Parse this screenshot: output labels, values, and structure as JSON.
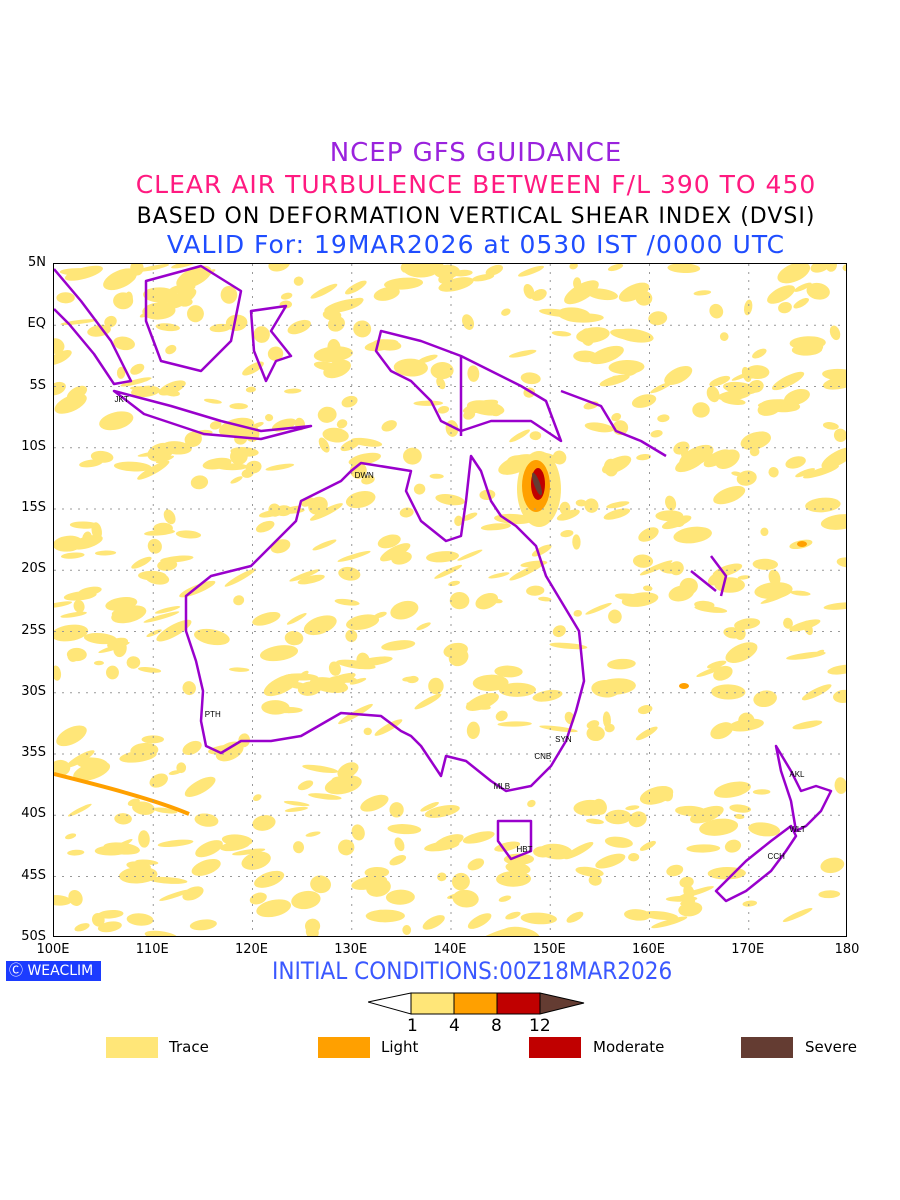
{
  "titles": {
    "line1": "NCEP GFS GUIDANCE",
    "line2": "CLEAR AIR TURBULENCE BETWEEN F/L 390 TO 450",
    "line3": "BASED ON DEFORMATION VERTICAL SHEAR INDEX (DVSI)",
    "line4": "VALID For: 19MAR2026 at 0530 IST /0000 UTC"
  },
  "lat_labels": [
    "5N",
    "EQ",
    "5S",
    "10S",
    "15S",
    "20S",
    "25S",
    "30S",
    "35S",
    "40S",
    "45S",
    "50S"
  ],
  "lon_labels": [
    "100E",
    "110E",
    "120E",
    "130E",
    "140E",
    "150E",
    "160E",
    "170E",
    "180"
  ],
  "cities": [
    {
      "code": "JKT",
      "lon": 106.8,
      "lat": -6.2
    },
    {
      "code": "DWN",
      "lon": 131,
      "lat": -12.4
    },
    {
      "code": "PTH",
      "lon": 115.9,
      "lat": -31.9
    },
    {
      "code": "SYN",
      "lon": 151.2,
      "lat": -33.9
    },
    {
      "code": "CNB",
      "lon": 149.1,
      "lat": -35.3
    },
    {
      "code": "MLB",
      "lon": 145,
      "lat": -37.8
    },
    {
      "code": "HBT",
      "lon": 147.3,
      "lat": -42.9
    },
    {
      "code": "AKL",
      "lon": 174.8,
      "lat": -36.8
    },
    {
      "code": "WLT",
      "lon": 174.8,
      "lat": -41.3
    },
    {
      "code": "CCH",
      "lon": 172.6,
      "lat": -43.5
    }
  ],
  "footer": {
    "brand": "WEACLIM",
    "brand_icon": "copyright-icon",
    "initial_conditions": "INITIAL CONDITIONS:00Z18MAR2026"
  },
  "colorbar": {
    "ticks": [
      "1",
      "4",
      "8",
      "12"
    ],
    "colors": [
      "#ffe678",
      "#ffa000",
      "#c00000",
      "#643c32"
    ]
  },
  "legend": [
    {
      "label": "Trace",
      "color": "#ffe678"
    },
    {
      "label": "Light",
      "color": "#ffa000"
    },
    {
      "label": "Moderate",
      "color": "#c00000"
    },
    {
      "label": "Severe",
      "color": "#643c32"
    }
  ],
  "colors": {
    "coast": "#9900cc"
  }
}
